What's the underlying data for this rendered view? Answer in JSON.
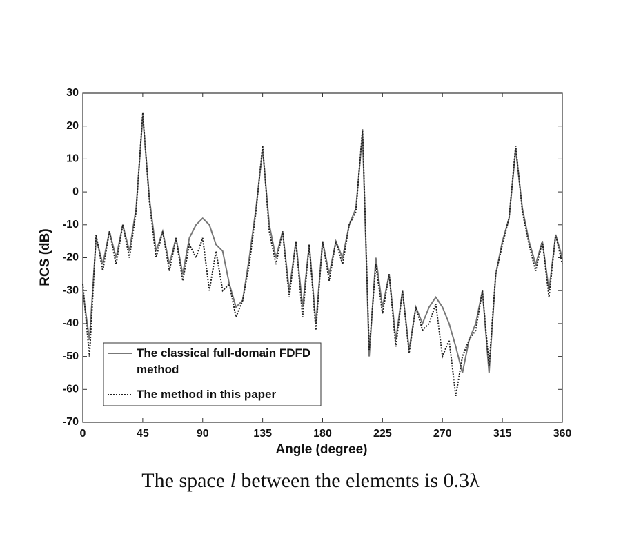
{
  "chart_data": {
    "type": "line",
    "xlabel": "Angle (degree)",
    "ylabel": "RCS (dB)",
    "caption": [
      "The space ",
      "l",
      " between the elements is 0.3λ"
    ],
    "x": [
      0,
      5,
      10,
      15,
      20,
      25,
      30,
      35,
      40,
      45,
      50,
      55,
      60,
      65,
      70,
      75,
      80,
      85,
      90,
      95,
      100,
      105,
      110,
      115,
      120,
      125,
      130,
      135,
      140,
      145,
      150,
      155,
      160,
      165,
      170,
      175,
      180,
      185,
      190,
      195,
      200,
      205,
      210,
      215,
      220,
      225,
      230,
      235,
      240,
      245,
      250,
      255,
      260,
      265,
      270,
      275,
      280,
      285,
      290,
      295,
      300,
      305,
      310,
      315,
      320,
      325,
      330,
      335,
      340,
      345,
      350,
      355,
      360
    ],
    "series": [
      {
        "name": "The classical full-domain FDFD method",
        "color": "#777777",
        "style": "solid",
        "values": [
          -30,
          -45,
          -14,
          -22,
          -12,
          -20,
          -10,
          -18,
          -5,
          23,
          -2,
          -18,
          -12,
          -22,
          -14,
          -25,
          -14,
          -10,
          -8,
          -10,
          -16,
          -18,
          -28,
          -35,
          -33,
          -20,
          -5,
          13,
          -10,
          -20,
          -12,
          -30,
          -15,
          -35,
          -16,
          -40,
          -15,
          -25,
          -15,
          -20,
          -10,
          -5,
          18,
          -50,
          -20,
          -35,
          -25,
          -45,
          -30,
          -48,
          -35,
          -40,
          -35,
          -32,
          -35,
          -40,
          -47,
          -55,
          -45,
          -40,
          -30,
          -55,
          -25,
          -15,
          -8,
          13,
          -5,
          -15,
          -22,
          -15,
          -30,
          -13,
          -20
        ]
      },
      {
        "name": "The method in this paper",
        "color": "#222222",
        "style": "dotted",
        "values": [
          -28,
          -50,
          -13,
          -24,
          -12,
          -22,
          -10,
          -20,
          -6,
          24,
          -3,
          -20,
          -12,
          -24,
          -14,
          -27,
          -16,
          -20,
          -14,
          -30,
          -18,
          -30,
          -28,
          -38,
          -33,
          -22,
          -6,
          14,
          -12,
          -22,
          -12,
          -32,
          -15,
          -38,
          -16,
          -42,
          -15,
          -27,
          -15,
          -22,
          -10,
          -6,
          19,
          -48,
          -22,
          -37,
          -25,
          -47,
          -30,
          -49,
          -35,
          -42,
          -40,
          -34,
          -50,
          -45,
          -62,
          -50,
          -45,
          -42,
          -30,
          -53,
          -25,
          -16,
          -8,
          14,
          -6,
          -16,
          -24,
          -15,
          -32,
          -13,
          -22
        ]
      }
    ],
    "xlim": [
      0,
      360
    ],
    "xticks": [
      0,
      45,
      90,
      135,
      180,
      225,
      270,
      315,
      360
    ],
    "ylim": [
      -70,
      30
    ],
    "yticks": [
      -70,
      -60,
      -50,
      -40,
      -30,
      -20,
      -10,
      0,
      10,
      20,
      30
    ]
  }
}
